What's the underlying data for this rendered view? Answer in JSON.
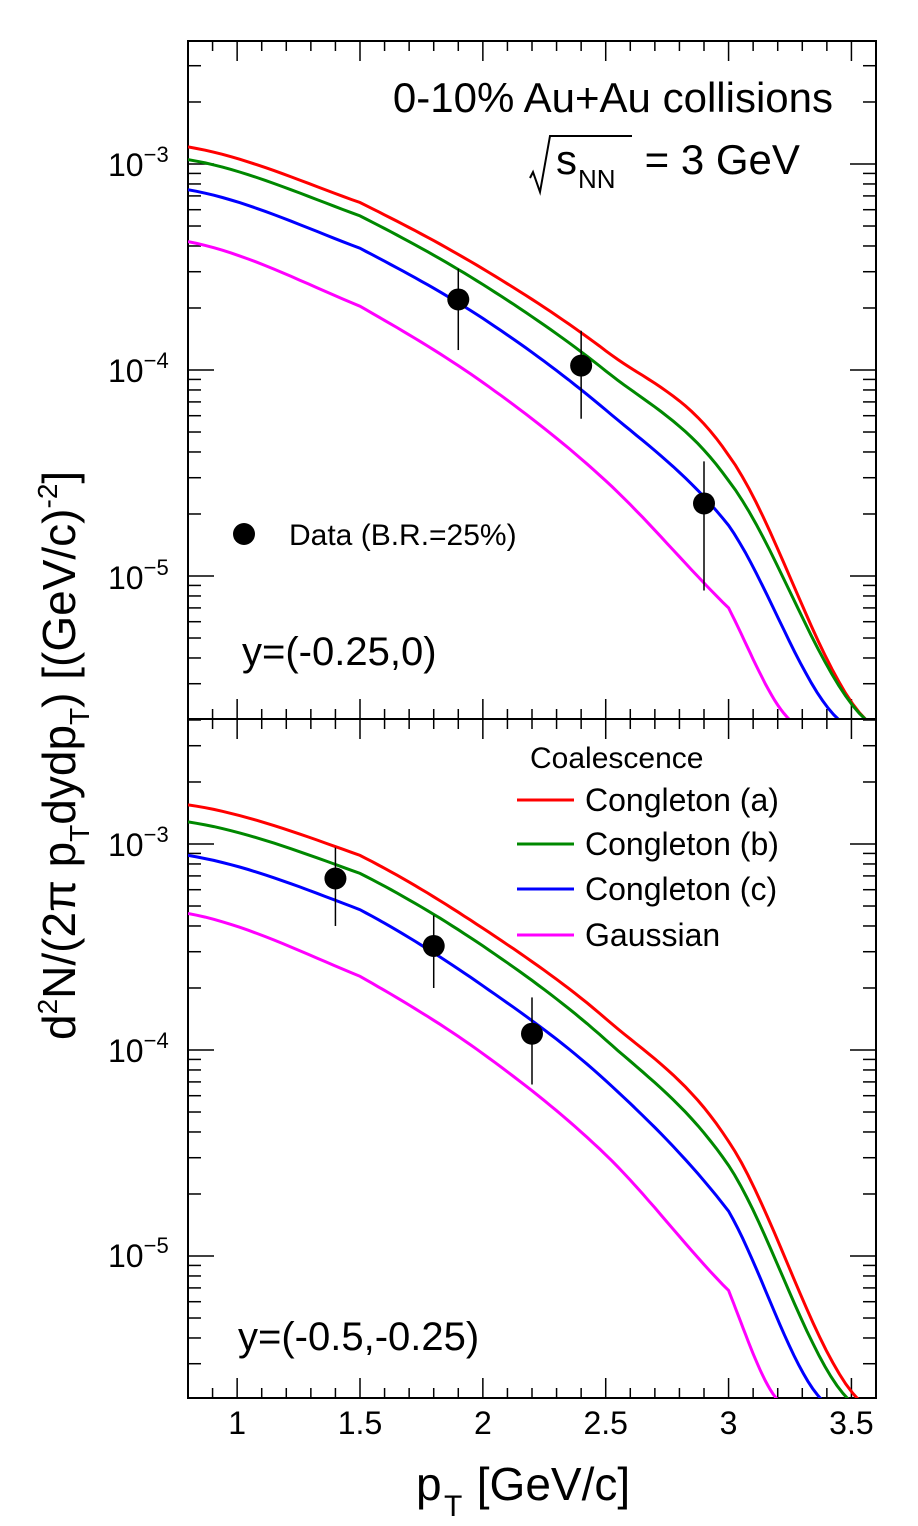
{
  "colors": {
    "congleton_a": "#ff0000",
    "congleton_b": "#008800",
    "congleton_c": "#0000ff",
    "gaussian": "#ff00ff",
    "data": "#000000"
  },
  "labels": {
    "title_line1": "0-10% Au+Au collisions",
    "title_sqrt_s": "s",
    "title_sqrt_sub": "NN",
    "title_sqrt_rest": " = 3 GeV",
    "data_legend": "Data (B.R.=25%)",
    "legend_header": "Coalescence",
    "top_rapidity": "y=(-0.25,0)",
    "bottom_rapidity": "y=(-0.5,-0.25)",
    "xaxis_main": "p",
    "xaxis_sub": "T",
    "xaxis_unit": " [GeV/c]",
    "y_d": "d",
    "y_2": "2",
    "y_n": "N/(2π p",
    "y_t1": "T",
    "y_dydp": "dydp",
    "y_t2": "T",
    "y_close": ") [(GeV/c)",
    "y_exp": "-2",
    "y_end": "]"
  },
  "chart_data": [
    {
      "type": "line",
      "panel": "top",
      "annotation": "y=(-0.25,0)",
      "xlim": [
        0.8,
        3.6
      ],
      "ylim": [
        2e-06,
        0.004
      ],
      "yscale": "log",
      "y_ticklabels": [
        {
          "base": "10",
          "exp": "−3"
        },
        {
          "base": "10",
          "exp": "−4"
        },
        {
          "base": "10",
          "exp": "−5"
        }
      ],
      "series": [
        {
          "name": "Congleton (a)",
          "x": [
            0.8,
            1.5,
            2.0,
            2.5,
            3.0,
            3.56
          ],
          "y": [
            0.00121,
            0.00065,
            0.00031,
            0.000124,
            3.85e-05,
            2e-06
          ]
        },
        {
          "name": "Congleton (b)",
          "x": [
            0.8,
            1.5,
            2.0,
            2.5,
            3.0,
            3.56
          ],
          "y": [
            0.00105,
            0.00056,
            0.00026,
            9.9e-05,
            2.9e-05,
            2e-06
          ]
        },
        {
          "name": "Congleton (c)",
          "x": [
            0.8,
            1.5,
            2.0,
            2.5,
            3.0,
            3.45
          ],
          "y": [
            0.00075,
            0.00039,
            0.000178,
            6.4e-05,
            1.76e-05,
            2e-06
          ]
        },
        {
          "name": "Gaussian",
          "x": [
            0.8,
            1.5,
            2.0,
            2.5,
            3.0,
            3.25
          ],
          "y": [
            0.00042,
            0.000204,
            8.7e-05,
            2.9e-05,
            7e-06,
            2e-06
          ]
        }
      ],
      "points": [
        {
          "x": 1.9,
          "y": 0.00022,
          "yerr_low": 0.000125,
          "yerr_high": 0.00031
        },
        {
          "x": 2.4,
          "y": 0.000105,
          "yerr_low": 5.8e-05,
          "yerr_high": 0.000155
        },
        {
          "x": 2.9,
          "y": 2.25e-05,
          "yerr_low": 8.5e-06,
          "yerr_high": 3.6e-05
        }
      ]
    },
    {
      "type": "line",
      "panel": "bottom",
      "annotation": "y=(-0.5,-0.25)",
      "xlim": [
        0.8,
        3.6
      ],
      "ylim": [
        2e-06,
        0.004
      ],
      "yscale": "log",
      "xticks": [
        1,
        1.5,
        2,
        2.5,
        3,
        3.5
      ],
      "xticklabels": [
        "1",
        "1.5",
        "2",
        "2.5",
        "3",
        "3.5"
      ],
      "y_ticklabels": [
        {
          "base": "10",
          "exp": "−3"
        },
        {
          "base": "10",
          "exp": "−4"
        },
        {
          "base": "10",
          "exp": "−5"
        }
      ],
      "series": [
        {
          "name": "Congleton (a)",
          "x": [
            0.8,
            1.5,
            2.0,
            2.5,
            3.0,
            3.53
          ],
          "y": [
            0.00155,
            0.00088,
            0.00039,
            0.000142,
            3.6e-05,
            2e-06
          ]
        },
        {
          "name": "Congleton (b)",
          "x": [
            0.8,
            1.5,
            2.0,
            2.5,
            3.0,
            3.49
          ],
          "y": [
            0.00128,
            0.00072,
            0.00032,
            0.000112,
            2.75e-05,
            2e-06
          ]
        },
        {
          "name": "Congleton (c)",
          "x": [
            0.8,
            1.5,
            2.0,
            2.5,
            3.0,
            3.38
          ],
          "y": [
            0.00088,
            0.00048,
            0.000205,
            7.1e-05,
            1.65e-05,
            2e-06
          ]
        },
        {
          "name": "Gaussian",
          "x": [
            0.8,
            1.5,
            2.0,
            2.5,
            3.0,
            3.2
          ],
          "y": [
            0.00046,
            0.000228,
            9.6e-05,
            3.1e-05,
            6.8e-06,
            2e-06
          ]
        }
      ],
      "points": [
        {
          "x": 1.4,
          "y": 0.00068,
          "yerr_low": 0.0004,
          "yerr_high": 0.00096
        },
        {
          "x": 1.8,
          "y": 0.00032,
          "yerr_low": 0.0002,
          "yerr_high": 0.00045
        },
        {
          "x": 2.2,
          "y": 0.00012,
          "yerr_low": 6.8e-05,
          "yerr_high": 0.00018
        }
      ]
    }
  ],
  "legend": {
    "header": "Coalescence",
    "entries": [
      "Congleton (a)",
      "Congleton (b)",
      "Congleton (c)",
      "Gaussian"
    ]
  }
}
